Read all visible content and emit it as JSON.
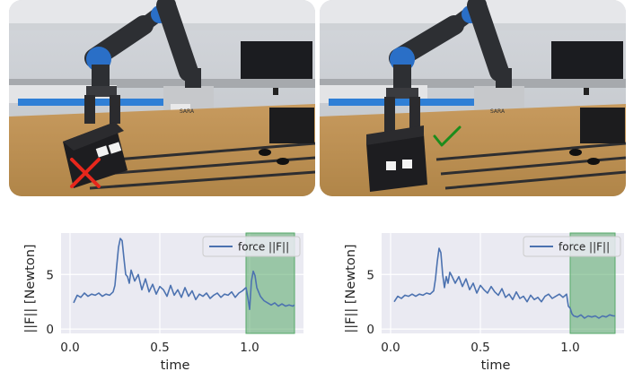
{
  "photos": [
    {
      "name": "left",
      "outcome": "fail",
      "mark": "red-x-icon",
      "mark_color": "#e8271c",
      "logo_text": "SARA"
    },
    {
      "name": "right",
      "outcome": "success",
      "mark": "green-check-icon",
      "mark_color": "#1c8c1c",
      "logo_text": "SARA"
    }
  ],
  "colors": {
    "plot_bg": "#eaeaf2",
    "grid": "#ffffff",
    "line": "#4c72b0",
    "span_fill": "#55a868",
    "text": "#262626"
  },
  "chart_data": [
    {
      "type": "line",
      "xlabel": "time",
      "ylabel": "||F|| [Newton]",
      "xlim": [
        -0.05,
        1.3
      ],
      "ylim": [
        -0.4,
        8.8
      ],
      "xticks": [
        "0.0",
        "0.5",
        "1.0"
      ],
      "xtick_values": [
        0,
        0.5,
        1.0
      ],
      "yticks": [
        "0",
        "5"
      ],
      "ytick_values": [
        0,
        5
      ],
      "grid": true,
      "legend": {
        "placement": "top-right",
        "entries": [
          "force ||F||"
        ]
      },
      "highlight_span": {
        "x_start": 0.98,
        "x_end": 1.25,
        "color": "#55a868"
      },
      "series": [
        {
          "name": "force ||F||",
          "x": [
            0.02,
            0.04,
            0.06,
            0.08,
            0.1,
            0.12,
            0.14,
            0.16,
            0.18,
            0.2,
            0.22,
            0.24,
            0.25,
            0.26,
            0.27,
            0.28,
            0.29,
            0.3,
            0.31,
            0.32,
            0.33,
            0.34,
            0.36,
            0.38,
            0.4,
            0.42,
            0.44,
            0.46,
            0.48,
            0.5,
            0.52,
            0.54,
            0.56,
            0.58,
            0.6,
            0.62,
            0.64,
            0.66,
            0.68,
            0.7,
            0.72,
            0.74,
            0.76,
            0.78,
            0.8,
            0.82,
            0.84,
            0.86,
            0.88,
            0.9,
            0.92,
            0.94,
            0.96,
            0.98,
            0.99,
            1.0,
            1.01,
            1.02,
            1.03,
            1.04,
            1.06,
            1.08,
            1.1,
            1.12,
            1.14,
            1.16,
            1.18,
            1.2,
            1.22,
            1.24,
            1.25
          ],
          "y": [
            2.4,
            3.1,
            2.9,
            3.3,
            3.0,
            3.2,
            3.1,
            3.3,
            3.0,
            3.2,
            3.1,
            3.4,
            4.0,
            5.8,
            7.5,
            8.3,
            8.1,
            6.5,
            5.0,
            4.8,
            4.2,
            5.4,
            4.4,
            5.0,
            3.6,
            4.6,
            3.4,
            4.1,
            3.2,
            3.9,
            3.6,
            3.0,
            4.0,
            3.1,
            3.6,
            2.9,
            3.8,
            3.0,
            3.5,
            2.7,
            3.2,
            3.0,
            3.3,
            2.8,
            3.1,
            3.3,
            2.9,
            3.2,
            3.1,
            3.4,
            2.9,
            3.3,
            3.5,
            3.8,
            2.9,
            1.8,
            4.4,
            5.3,
            4.9,
            3.8,
            3.0,
            2.6,
            2.4,
            2.2,
            2.4,
            2.1,
            2.3,
            2.1,
            2.2,
            2.1,
            2.2
          ]
        }
      ]
    },
    {
      "type": "line",
      "xlabel": "time",
      "ylabel": "||F|| [Newton]",
      "xlim": [
        -0.05,
        1.3
      ],
      "ylim": [
        -0.4,
        8.8
      ],
      "xticks": [
        "0.0",
        "0.5",
        "1.0"
      ],
      "xtick_values": [
        0,
        0.5,
        1.0
      ],
      "yticks": [
        "0",
        "5"
      ],
      "ytick_values": [
        0,
        5
      ],
      "grid": true,
      "legend": {
        "placement": "top-right",
        "entries": [
          "force ||F||"
        ]
      },
      "highlight_span": {
        "x_start": 1.0,
        "x_end": 1.25,
        "color": "#55a868"
      },
      "series": [
        {
          "name": "force ||F||",
          "x": [
            0.02,
            0.04,
            0.06,
            0.08,
            0.1,
            0.12,
            0.14,
            0.16,
            0.18,
            0.2,
            0.22,
            0.24,
            0.25,
            0.26,
            0.27,
            0.28,
            0.29,
            0.3,
            0.31,
            0.32,
            0.33,
            0.34,
            0.36,
            0.38,
            0.4,
            0.42,
            0.44,
            0.46,
            0.48,
            0.5,
            0.52,
            0.54,
            0.56,
            0.58,
            0.6,
            0.62,
            0.64,
            0.66,
            0.68,
            0.7,
            0.72,
            0.74,
            0.76,
            0.78,
            0.8,
            0.82,
            0.84,
            0.86,
            0.88,
            0.9,
            0.92,
            0.94,
            0.96,
            0.98,
            0.99,
            1.0,
            1.01,
            1.02,
            1.04,
            1.06,
            1.08,
            1.1,
            1.12,
            1.14,
            1.16,
            1.18,
            1.2,
            1.22,
            1.24,
            1.25
          ],
          "y": [
            2.5,
            3.0,
            2.8,
            3.1,
            3.0,
            3.2,
            3.0,
            3.2,
            3.1,
            3.3,
            3.2,
            3.5,
            4.6,
            6.2,
            7.4,
            7.0,
            5.0,
            3.8,
            4.8,
            4.2,
            5.2,
            4.9,
            4.2,
            4.8,
            3.9,
            4.6,
            3.6,
            4.2,
            3.3,
            4.0,
            3.6,
            3.3,
            3.9,
            3.4,
            3.1,
            3.7,
            2.9,
            3.2,
            2.7,
            3.4,
            2.8,
            3.0,
            2.5,
            3.1,
            2.7,
            2.9,
            2.5,
            3.0,
            3.2,
            2.8,
            3.0,
            3.2,
            2.9,
            3.2,
            2.1,
            1.9,
            1.4,
            1.2,
            1.1,
            1.3,
            1.0,
            1.2,
            1.1,
            1.2,
            1.0,
            1.2,
            1.1,
            1.3,
            1.2,
            1.2
          ]
        }
      ]
    }
  ]
}
